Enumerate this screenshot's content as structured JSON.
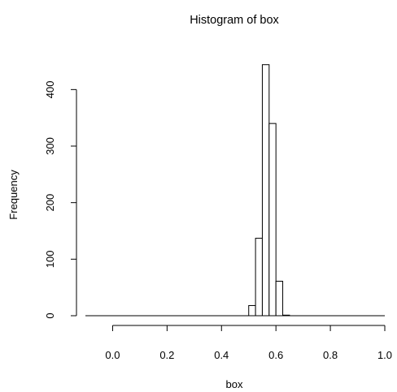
{
  "chart_data": {
    "type": "bar",
    "title": "Histogram of box",
    "xlabel": "box",
    "ylabel": "Frequency",
    "xlim": [
      -0.1,
      1.0
    ],
    "ylim": [
      0,
      445
    ],
    "grid": false,
    "x_ticks": [
      0.0,
      0.2,
      0.4,
      0.6,
      0.8,
      1.0
    ],
    "x_tick_labels": [
      "0.0",
      "0.2",
      "0.4",
      "0.6",
      "0.8",
      "1.0"
    ],
    "y_ticks": [
      0,
      100,
      200,
      300,
      400
    ],
    "y_tick_labels": [
      "0",
      "100",
      "200",
      "300",
      "400"
    ],
    "bin_width": 0.025,
    "bins": [
      {
        "x0": 0.5,
        "x1": 0.525,
        "count": 18
      },
      {
        "x0": 0.525,
        "x1": 0.55,
        "count": 137
      },
      {
        "x0": 0.55,
        "x1": 0.575,
        "count": 444
      },
      {
        "x0": 0.575,
        "x1": 0.6,
        "count": 340
      },
      {
        "x0": 0.6,
        "x1": 0.625,
        "count": 61
      },
      {
        "x0": 0.625,
        "x1": 0.65,
        "count": 1
      }
    ]
  }
}
